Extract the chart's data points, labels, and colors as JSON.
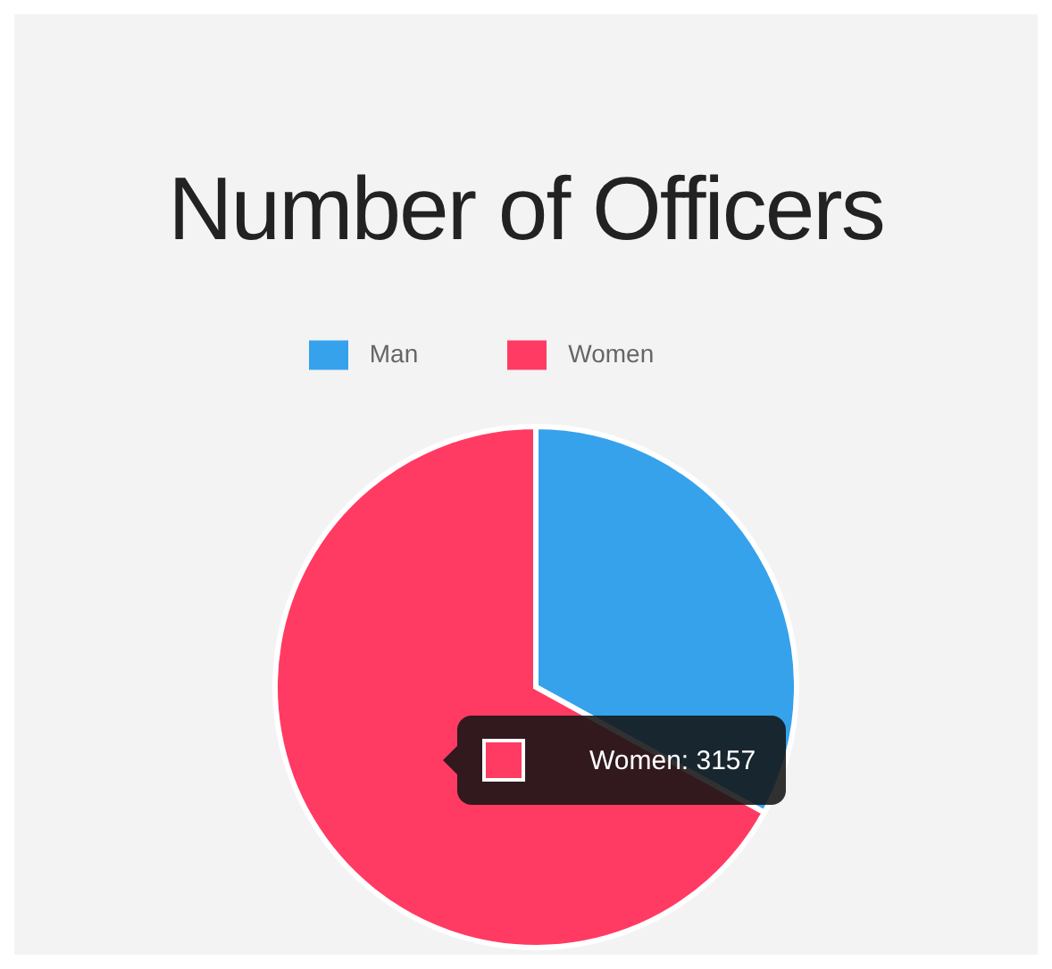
{
  "chart_data": {
    "type": "pie",
    "title": "Number of Officers",
    "categories": [
      "Man",
      "Women"
    ],
    "values": [
      33,
      67
    ],
    "colors": [
      "#36a2eb",
      "#ff3b63"
    ],
    "legend": "top",
    "annotations": [
      "Women: 3157"
    ]
  }
}
